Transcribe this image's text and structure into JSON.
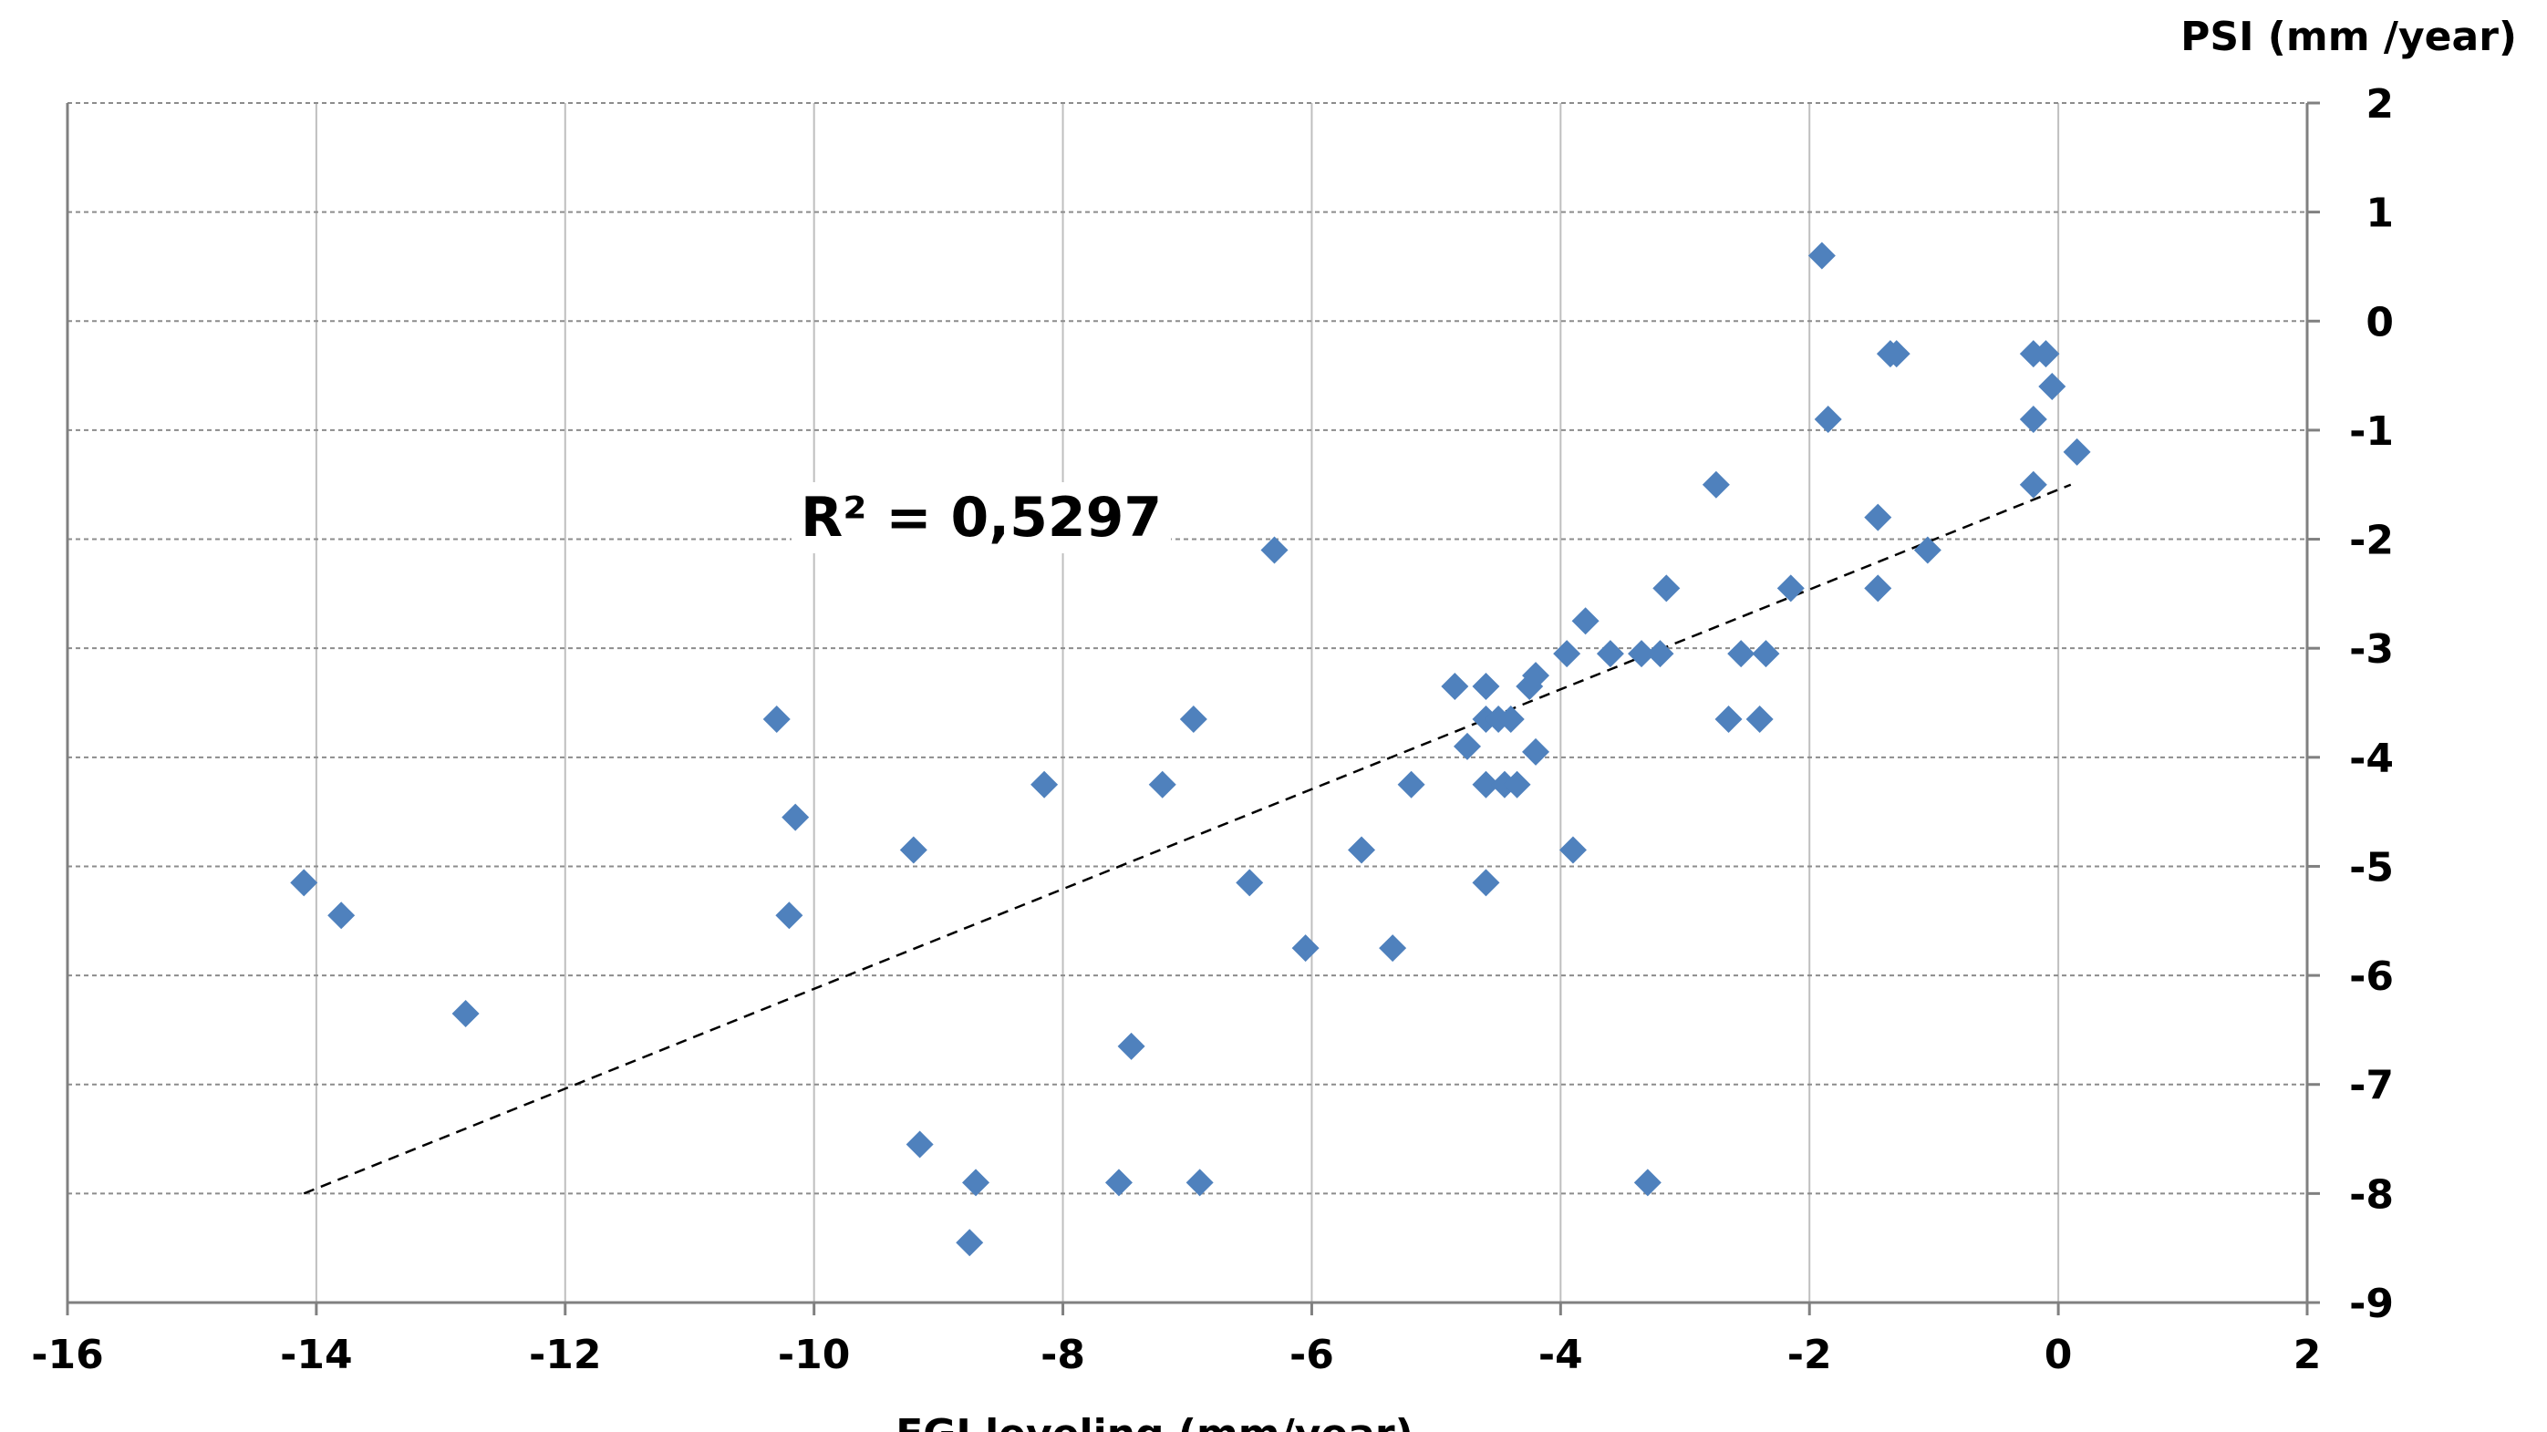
{
  "chart_data": {
    "type": "scatter",
    "xlabel": "FGI leveling (mm/year)",
    "ylabel": "PSI (mm /year)",
    "xlim": [
      -16,
      2
    ],
    "ylim": [
      -9,
      2
    ],
    "x_ticks": [
      "-16",
      "-14",
      "-12",
      "-10",
      "-8",
      "-6",
      "-4",
      "-2",
      "0",
      "2"
    ],
    "y_ticks": [
      "2",
      "1",
      "0",
      "-1",
      "-2",
      "-3",
      "-4",
      "-5",
      "-6",
      "-7",
      "-8",
      "-9"
    ],
    "grid": true,
    "y_axis_position": "right",
    "marker": "diamond",
    "marker_color": "#4F81BD",
    "trendline": {
      "style": "dashed",
      "color": "#000000",
      "from": [
        -14.1,
        -8.0
      ],
      "to": [
        0.1,
        -1.5
      ]
    },
    "annotation": "R² = 0,5297",
    "points": [
      [
        -14.1,
        -5.15
      ],
      [
        -13.8,
        -5.45
      ],
      [
        -12.8,
        -6.35
      ],
      [
        -10.3,
        -3.65
      ],
      [
        -10.15,
        -4.55
      ],
      [
        -10.2,
        -5.45
      ],
      [
        -9.2,
        -4.85
      ],
      [
        -9.15,
        -7.55
      ],
      [
        -8.75,
        -8.45
      ],
      [
        -8.7,
        -7.9
      ],
      [
        -8.15,
        -4.25
      ],
      [
        -7.55,
        -7.9
      ],
      [
        -7.45,
        -6.65
      ],
      [
        -7.2,
        -4.25
      ],
      [
        -6.95,
        -3.65
      ],
      [
        -6.9,
        -7.9
      ],
      [
        -6.5,
        -5.15
      ],
      [
        -6.3,
        -2.1
      ],
      [
        -6.05,
        -5.75
      ],
      [
        -5.6,
        -4.85
      ],
      [
        -5.35,
        -5.75
      ],
      [
        -5.2,
        -4.25
      ],
      [
        -4.85,
        -3.35
      ],
      [
        -4.75,
        -3.9
      ],
      [
        -4.6,
        -3.35
      ],
      [
        -4.6,
        -3.65
      ],
      [
        -4.6,
        -4.25
      ],
      [
        -4.6,
        -5.15
      ],
      [
        -4.5,
        -3.65
      ],
      [
        -4.45,
        -4.25
      ],
      [
        -4.4,
        -3.65
      ],
      [
        -4.35,
        -4.25
      ],
      [
        -4.25,
        -3.35
      ],
      [
        -4.2,
        -3.25
      ],
      [
        -4.2,
        -3.95
      ],
      [
        -3.95,
        -3.05
      ],
      [
        -3.9,
        -4.85
      ],
      [
        -3.8,
        -2.75
      ],
      [
        -3.6,
        -3.05
      ],
      [
        -3.35,
        -3.05
      ],
      [
        -3.3,
        -7.9
      ],
      [
        -3.2,
        -3.05
      ],
      [
        -3.15,
        -2.45
      ],
      [
        -2.75,
        -1.5
      ],
      [
        -2.65,
        -3.65
      ],
      [
        -2.55,
        -3.05
      ],
      [
        -2.4,
        -3.65
      ],
      [
        -2.35,
        -3.05
      ],
      [
        -2.15,
        -2.45
      ],
      [
        -1.9,
        0.6
      ],
      [
        -1.85,
        -0.9
      ],
      [
        -1.45,
        -1.8
      ],
      [
        -1.45,
        -2.45
      ],
      [
        -1.35,
        -0.3
      ],
      [
        -1.3,
        -0.3
      ],
      [
        -1.05,
        -2.1
      ],
      [
        -0.2,
        -0.3
      ],
      [
        -0.2,
        -0.9
      ],
      [
        -0.2,
        -1.5
      ],
      [
        -0.1,
        -0.3
      ],
      [
        -0.05,
        -0.6
      ],
      [
        0.15,
        -1.2
      ]
    ]
  }
}
